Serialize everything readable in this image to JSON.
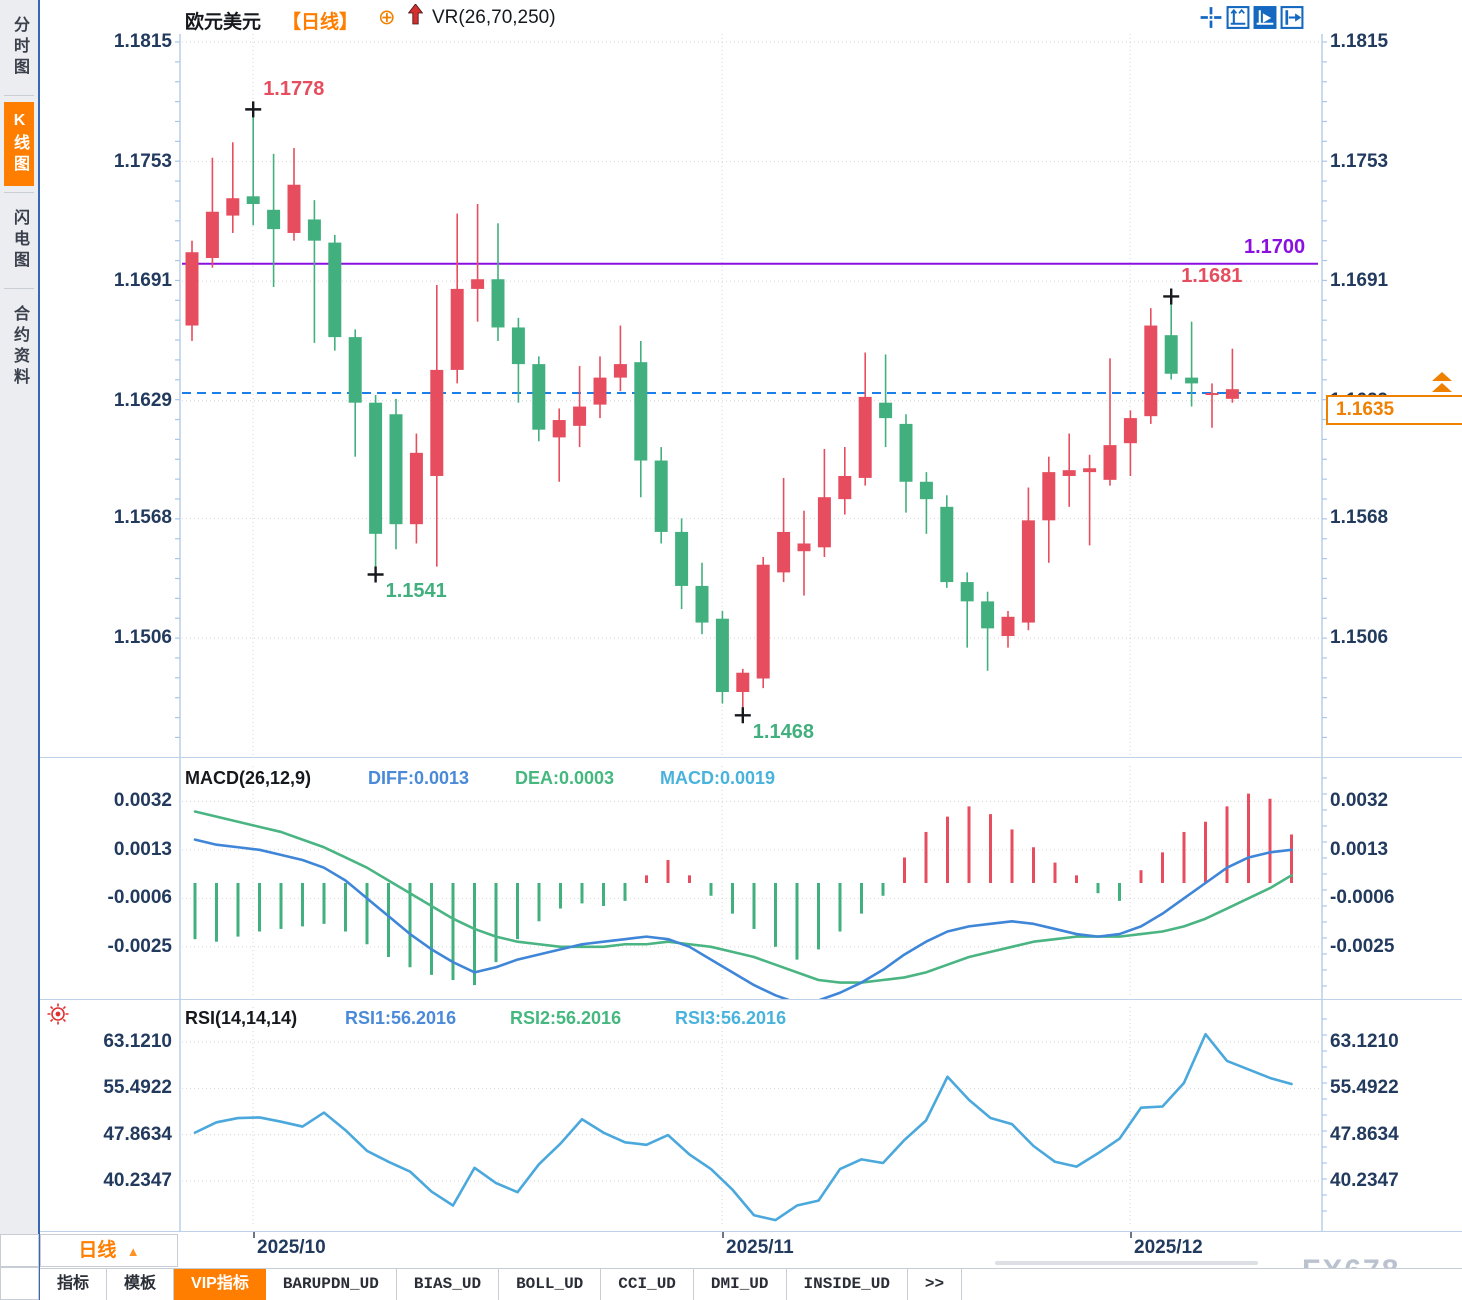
{
  "header": {
    "symbol": "欧元美元",
    "period_tag": "【日线】",
    "overlay_label": "VR(26,70,250)",
    "icons": [
      "crosshair-icon",
      "axis-scale-icon",
      "axis-play-icon",
      "pan-right-icon"
    ]
  },
  "sidebar": {
    "tabs": [
      {
        "label": "分时图",
        "active": false
      },
      {
        "label": "K线图",
        "active": true
      },
      {
        "label": "闪电图",
        "active": false
      },
      {
        "label": "合约资料",
        "active": false
      }
    ]
  },
  "macd_panel": {
    "title": "MACD(26,12,9)",
    "diff_label": "DIFF:0.0013",
    "dea_label": "DEA:0.0003",
    "macd_label": "MACD:0.0019"
  },
  "rsi_panel": {
    "title": "RSI(14,14,14)",
    "rsi1_label": "RSI1:56.2016",
    "rsi2_label": "RSI2:56.2016",
    "rsi3_label": "RSI3:56.2016"
  },
  "bottom": {
    "period_button": {
      "label": "日线",
      "arrow": "▲"
    },
    "tabs": [
      "指标",
      "模板",
      "VIP指标",
      "BARUPDN_UD",
      "BIAS_UD",
      "BOLL_UD",
      "CCI_UD",
      "DMI_UD",
      "INSIDE_UD",
      ">>"
    ],
    "active_tab": "VIP指标"
  },
  "price_box": {
    "value": "1.1635"
  },
  "watermark": "FX678",
  "colors": {
    "up": "#e64d5e",
    "down": "#42b07e",
    "level_line": "#8a10e0",
    "price_line": "#1a7fe8",
    "accent": "#ff7e00",
    "axis_text": "#223a5e",
    "icon_blue": "#1468c0",
    "diff_line": "#3f86d8",
    "dea_line": "#4ab582",
    "macd_text": "#49b3dc",
    "rsi_line": "#4aa8dc"
  },
  "chart_data": [
    {
      "type": "candlestick",
      "title": "欧元美元 日线 (EUR/USD daily)",
      "y_axis_labels": [
        1.1815,
        1.1753,
        1.1691,
        1.1629,
        1.1568,
        1.1506
      ],
      "x_axis_labels": [
        "2025/10",
        "2025/11",
        "2025/12"
      ],
      "x_gridline_candle_indices": [
        3,
        26,
        46
      ],
      "level_line": {
        "value": 1.17,
        "label": "1.1700"
      },
      "current_price_line": {
        "value": 1.1633,
        "style": "dashed"
      },
      "current_price": 1.1635,
      "markers": [
        {
          "candle_index": 3,
          "price": 1.1778,
          "side": "high",
          "label": "1.1778"
        },
        {
          "candle_index": 9,
          "price": 1.1541,
          "side": "low",
          "label": "1.1541"
        },
        {
          "candle_index": 27,
          "price": 1.1468,
          "side": "low",
          "label": "1.1468"
        },
        {
          "candle_index": 48,
          "price": 1.1681,
          "side": "high",
          "label": "1.1681"
        }
      ],
      "candles_ohlc": [
        [
          1.1668,
          1.1712,
          1.166,
          1.1706
        ],
        [
          1.1703,
          1.1755,
          1.1698,
          1.1727
        ],
        [
          1.1725,
          1.1763,
          1.1716,
          1.1734
        ],
        [
          1.1735,
          1.1778,
          1.172,
          1.1731
        ],
        [
          1.1728,
          1.1757,
          1.1688,
          1.1718
        ],
        [
          1.1716,
          1.176,
          1.1712,
          1.1741
        ],
        [
          1.1723,
          1.1733,
          1.1659,
          1.1712
        ],
        [
          1.1711,
          1.1715,
          1.1655,
          1.1662
        ],
        [
          1.1662,
          1.1666,
          1.16,
          1.1628
        ],
        [
          1.1628,
          1.1632,
          1.1541,
          1.156
        ],
        [
          1.1622,
          1.163,
          1.1552,
          1.1565
        ],
        [
          1.1565,
          1.1612,
          1.1555,
          1.1602
        ],
        [
          1.159,
          1.1689,
          1.1543,
          1.1645
        ],
        [
          1.1645,
          1.1726,
          1.1638,
          1.1687
        ],
        [
          1.1687,
          1.1731,
          1.167,
          1.1692
        ],
        [
          1.1692,
          1.1721,
          1.166,
          1.1667
        ],
        [
          1.1667,
          1.1672,
          1.1628,
          1.1648
        ],
        [
          1.1648,
          1.1652,
          1.1608,
          1.1614
        ],
        [
          1.161,
          1.1625,
          1.1587,
          1.1619
        ],
        [
          1.1616,
          1.1647,
          1.1605,
          1.1626
        ],
        [
          1.1627,
          1.1652,
          1.162,
          1.1641
        ],
        [
          1.1641,
          1.1668,
          1.1634,
          1.1648
        ],
        [
          1.1649,
          1.166,
          1.1579,
          1.1598
        ],
        [
          1.1598,
          1.1605,
          1.1555,
          1.1561
        ],
        [
          1.1561,
          1.1568,
          1.1521,
          1.1533
        ],
        [
          1.1533,
          1.1545,
          1.1508,
          1.1514
        ],
        [
          1.1516,
          1.152,
          1.1472,
          1.1478
        ],
        [
          1.1478,
          1.149,
          1.1468,
          1.1488
        ],
        [
          1.1485,
          1.1548,
          1.148,
          1.1544
        ],
        [
          1.154,
          1.1589,
          1.1535,
          1.1561
        ],
        [
          1.1551,
          1.1572,
          1.1528,
          1.1555
        ],
        [
          1.1553,
          1.1604,
          1.1548,
          1.1579
        ],
        [
          1.1578,
          1.1605,
          1.157,
          1.159
        ],
        [
          1.1589,
          1.1654,
          1.1585,
          1.1631
        ],
        [
          1.1628,
          1.1653,
          1.1605,
          1.162
        ],
        [
          1.1617,
          1.1622,
          1.1571,
          1.1587
        ],
        [
          1.1587,
          1.1592,
          1.156,
          1.1578
        ],
        [
          1.1574,
          1.158,
          1.1532,
          1.1535
        ],
        [
          1.1535,
          1.154,
          1.1501,
          1.1525
        ],
        [
          1.1525,
          1.153,
          1.1489,
          1.1511
        ],
        [
          1.1507,
          1.152,
          1.1501,
          1.1517
        ],
        [
          1.1514,
          1.1584,
          1.151,
          1.1567
        ],
        [
          1.1567,
          1.16,
          1.1545,
          1.1592
        ],
        [
          1.159,
          1.1612,
          1.1574,
          1.1593
        ],
        [
          1.1592,
          1.1601,
          1.1554,
          1.1594
        ],
        [
          1.1588,
          1.1651,
          1.1585,
          1.1606
        ],
        [
          1.1607,
          1.1624,
          1.159,
          1.162
        ],
        [
          1.1621,
          1.1677,
          1.1617,
          1.1668
        ],
        [
          1.1663,
          1.1681,
          1.164,
          1.1643
        ],
        [
          1.1641,
          1.167,
          1.1626,
          1.1638
        ],
        [
          1.1633,
          1.1638,
          1.1615,
          1.1633
        ],
        [
          1.163,
          1.1656,
          1.1628,
          1.1635
        ]
      ]
    },
    {
      "type": "bar",
      "title": "MACD(26,12,9)",
      "values": {
        "diff": 0.0013,
        "dea": 0.0003,
        "macd": 0.0019
      },
      "y_axis_labels": [
        0.0032,
        0.0013,
        -0.0006,
        -0.0025
      ],
      "diff_series": [
        0.0017,
        0.0015,
        0.0014,
        0.0013,
        0.0011,
        0.0009,
        0.0006,
        0.0001,
        -0.0006,
        -0.0013,
        -0.002,
        -0.0026,
        -0.0031,
        -0.0035,
        -0.0033,
        -0.003,
        -0.0028,
        -0.0026,
        -0.0024,
        -0.0023,
        -0.0022,
        -0.0021,
        -0.0022,
        -0.0025,
        -0.003,
        -0.0035,
        -0.004,
        -0.0044,
        -0.0047,
        -0.0046,
        -0.0043,
        -0.0039,
        -0.0034,
        -0.0028,
        -0.0023,
        -0.0019,
        -0.0017,
        -0.0016,
        -0.0015,
        -0.0016,
        -0.0018,
        -0.002,
        -0.0021,
        -0.002,
        -0.0017,
        -0.0012,
        -0.0006,
        0.0,
        0.0006,
        0.001,
        0.0012,
        0.0013
      ],
      "dea_series": [
        0.0028,
        0.0026,
        0.0024,
        0.0022,
        0.002,
        0.0017,
        0.0014,
        0.001,
        0.0006,
        0.0001,
        -0.0004,
        -0.0009,
        -0.0014,
        -0.0018,
        -0.0021,
        -0.0023,
        -0.0024,
        -0.0025,
        -0.0025,
        -0.0025,
        -0.0024,
        -0.0024,
        -0.0023,
        -0.0024,
        -0.0025,
        -0.0027,
        -0.0029,
        -0.0032,
        -0.0035,
        -0.0038,
        -0.0039,
        -0.0039,
        -0.0038,
        -0.0037,
        -0.0035,
        -0.0032,
        -0.0029,
        -0.0027,
        -0.0025,
        -0.0023,
        -0.0022,
        -0.0021,
        -0.0021,
        -0.0021,
        -0.002,
        -0.0019,
        -0.0017,
        -0.0014,
        -0.001,
        -0.0006,
        -0.0002,
        0.0003
      ],
      "hist_series": [
        -0.0022,
        -0.0023,
        -0.0021,
        -0.0019,
        -0.0018,
        -0.0017,
        -0.0016,
        -0.0019,
        -0.0024,
        -0.0029,
        -0.0033,
        -0.0036,
        -0.0038,
        -0.004,
        -0.0031,
        -0.0022,
        -0.0015,
        -0.001,
        -0.0008,
        -0.0009,
        -0.0007,
        0.0003,
        0.0009,
        0.0003,
        -0.0005,
        -0.0012,
        -0.0018,
        -0.0025,
        -0.003,
        -0.0026,
        -0.0019,
        -0.0012,
        -0.0005,
        0.001,
        0.002,
        0.0026,
        0.003,
        0.0027,
        0.0021,
        0.0014,
        0.0008,
        0.0003,
        -0.0004,
        -0.0007,
        0.0005,
        0.0012,
        0.002,
        0.0024,
        0.003,
        0.0035,
        0.0033,
        0.0019
      ]
    },
    {
      "type": "line",
      "title": "RSI(14,14,14)",
      "values": {
        "rsi1": 56.2016,
        "rsi2": 56.2016,
        "rsi3": 56.2016
      },
      "y_axis_labels": [
        63.121,
        55.4922,
        47.8634,
        40.2347
      ],
      "series": [
        48.2,
        49.9,
        50.6,
        50.7,
        50.0,
        49.2,
        51.5,
        48.6,
        45.2,
        43.4,
        41.8,
        38.5,
        36.2,
        42.4,
        39.9,
        38.4,
        43.0,
        46.4,
        50.4,
        48.2,
        46.6,
        46.2,
        47.8,
        44.6,
        42.2,
        38.8,
        34.6,
        33.8,
        36.2,
        37.0,
        42.2,
        43.8,
        43.2,
        47.0,
        50.2,
        57.4,
        53.6,
        50.6,
        49.6,
        46.0,
        43.4,
        42.6,
        44.8,
        47.2,
        52.3,
        52.5,
        56.4,
        64.4,
        60.0,
        58.6,
        57.2,
        56.2
      ]
    }
  ]
}
